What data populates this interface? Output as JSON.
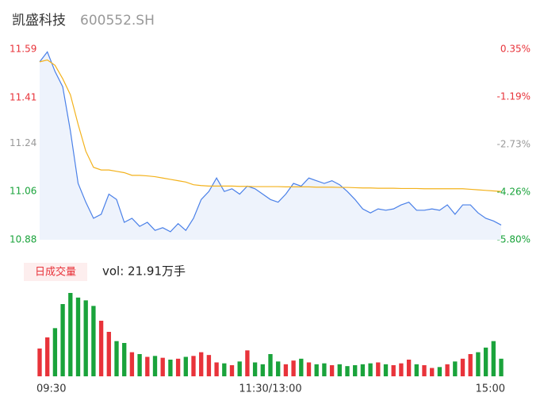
{
  "chart_data": {
    "type": "line",
    "title": "凯盛科技",
    "subtitle": "600552.SH",
    "x": [
      0,
      4,
      8,
      12,
      16,
      20,
      24,
      28,
      32,
      36,
      40,
      44,
      48,
      52,
      56,
      60,
      64,
      68,
      72,
      76,
      80,
      84,
      88,
      92,
      96,
      100,
      104,
      108,
      112,
      116,
      120,
      124,
      128,
      132,
      136,
      140,
      144,
      148,
      152,
      156,
      160,
      164,
      168,
      172,
      176,
      180,
      184,
      188,
      192,
      196,
      200,
      204,
      208,
      212,
      216,
      220,
      224,
      228,
      232,
      236,
      240
    ],
    "xlim": [
      0,
      240
    ],
    "xticks": [
      {
        "value": 0,
        "label": "09:30"
      },
      {
        "value": 120,
        "label": "11:30/13:00"
      },
      {
        "value": 240,
        "label": "15:00"
      }
    ],
    "ylim": [
      10.88,
      11.59
    ],
    "yticks": [
      11.59,
      11.41,
      11.24,
      11.06,
      10.88
    ],
    "y2lim": [
      -5.8,
      0.35
    ],
    "y2ticks": [
      {
        "value": 0.35,
        "label": "0.35%"
      },
      {
        "value": -1.19,
        "label": "-1.19%"
      },
      {
        "value": -2.73,
        "label": "-2.73%"
      },
      {
        "value": -4.26,
        "label": "-4.26%"
      },
      {
        "value": -5.8,
        "label": "-5.80%"
      }
    ],
    "up_color": "#e8333a",
    "flat_color": "#999999",
    "down_color": "#1aa33b",
    "series": [
      {
        "color": "#4a80e8",
        "fill": "#eef3fc",
        "values": [
          11.543,
          11.58,
          11.507,
          11.45,
          11.285,
          11.09,
          11.02,
          10.96,
          10.975,
          11.05,
          11.03,
          10.945,
          10.96,
          10.93,
          10.945,
          10.915,
          10.925,
          10.91,
          10.94,
          10.915,
          10.96,
          11.03,
          11.06,
          11.11,
          11.06,
          11.07,
          11.05,
          11.08,
          11.07,
          11.05,
          11.03,
          11.02,
          11.05,
          11.09,
          11.08,
          11.11,
          11.1,
          11.09,
          11.1,
          11.085,
          11.06,
          11.03,
          10.995,
          10.98,
          10.995,
          10.99,
          10.995,
          11.01,
          11.02,
          10.99,
          10.99,
          10.995,
          10.99,
          11.01,
          10.975,
          11.01,
          11.01,
          10.98,
          10.96,
          10.95,
          10.935
        ]
      },
      {
        "color": "#f3b21c",
        "values": [
          11.543,
          11.55,
          11.53,
          11.48,
          11.42,
          11.31,
          11.21,
          11.15,
          11.14,
          11.14,
          11.135,
          11.13,
          11.12,
          11.12,
          11.118,
          11.115,
          11.11,
          11.105,
          11.1,
          11.095,
          11.085,
          11.082,
          11.08,
          11.08,
          11.08,
          11.08,
          11.079,
          11.079,
          11.078,
          11.078,
          11.078,
          11.078,
          11.077,
          11.077,
          11.077,
          11.077,
          11.076,
          11.076,
          11.076,
          11.075,
          11.075,
          11.074,
          11.073,
          11.073,
          11.072,
          11.072,
          11.072,
          11.071,
          11.071,
          11.071,
          11.07,
          11.07,
          11.07,
          11.07,
          11.07,
          11.07,
          11.068,
          11.066,
          11.064,
          11.062,
          11.06
        ]
      }
    ],
    "volume": {
      "button": "日成交量",
      "label": "vol: 21.91万手",
      "values": [
        3000,
        4200,
        5200,
        7800,
        9000,
        8500,
        8200,
        7600,
        6000,
        4800,
        3800,
        3600,
        2600,
        2400,
        2100,
        2200,
        2000,
        1800,
        1900,
        2100,
        2200,
        2600,
        2300,
        1500,
        1400,
        1200,
        1600,
        2800,
        1500,
        1300,
        2400,
        1600,
        1300,
        1700,
        1900,
        1500,
        1300,
        1400,
        1200,
        1300,
        1100,
        1200,
        1300,
        1400,
        1500,
        1300,
        1200,
        1400,
        1800,
        1300,
        1200,
        900,
        1000,
        1300,
        1600,
        1900,
        2400,
        2600,
        3100,
        3800,
        1900
      ]
    }
  }
}
